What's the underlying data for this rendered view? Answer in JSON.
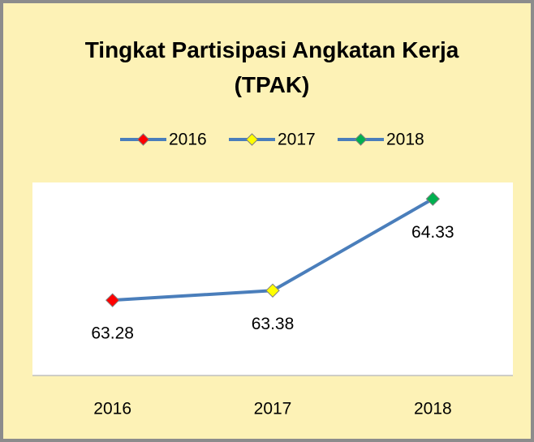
{
  "chart_data": {
    "type": "line",
    "title": "Tingkat Partisipasi Angkatan Kerja (TPAK)",
    "categories": [
      "2016",
      "2017",
      "2018"
    ],
    "values": [
      63.28,
      63.38,
      64.33
    ],
    "color": "#4a7ebb",
    "point_colors": [
      "#ff0000",
      "#ffff00",
      "#00b050"
    ],
    "ylim": [
      62.5,
      64.5
    ],
    "legend": "top"
  }
}
